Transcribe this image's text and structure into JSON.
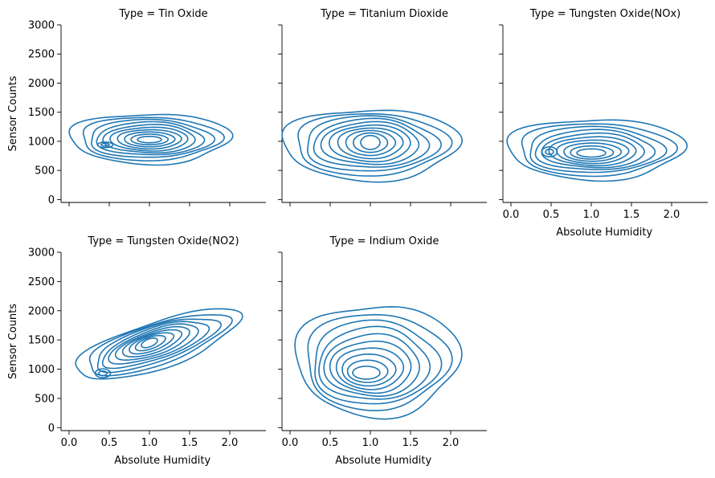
{
  "chart_data": {
    "type": "kde-contour-facet-grid",
    "xlabel": "Absolute Humidity",
    "ylabel": "Sensor Counts",
    "xlim": [
      -0.1,
      2.45
    ],
    "ylim": [
      -50,
      3000
    ],
    "xticks": [
      0.0,
      0.5,
      1.0,
      1.5,
      2.0
    ],
    "xtick_labels": [
      "0.0",
      "0.5",
      "1.0",
      "1.5",
      "2.0"
    ],
    "yticks": [
      0,
      500,
      1000,
      1500,
      2000,
      2500,
      3000
    ],
    "ytick_labels": [
      "0",
      "500",
      "1000",
      "1500",
      "2000",
      "2500",
      "3000"
    ],
    "line_color": "#1f77b4",
    "grid": false,
    "levels": 10,
    "panels": [
      {
        "title": "Type = Tin Oxide",
        "show_xticklabels": false,
        "show_xlabel": false,
        "show_yticklabels": true,
        "show_ylabel": true,
        "outer": {
          "cx": 1.0,
          "cy": 1050,
          "rx": 1.0,
          "ry": 430
        },
        "inner": {
          "cx": 1.0,
          "cy": 1030,
          "rx": 0.15,
          "ry": 55
        },
        "peaks": [
          {
            "cx": 0.45,
            "cy": 940,
            "rx": 0.05,
            "ry": 25
          }
        ]
      },
      {
        "title": "Type = Titanium Dioxide",
        "show_xticklabels": false,
        "show_xlabel": false,
        "show_yticklabels": false,
        "show_ylabel": false,
        "outer": {
          "cx": 1.0,
          "cy": 950,
          "rx": 1.1,
          "ry": 610
        },
        "inner": {
          "cx": 1.0,
          "cy": 980,
          "rx": 0.12,
          "ry": 120
        },
        "peaks": []
      },
      {
        "title": "Type = Tungsten Oxide(NOx)",
        "show_xticklabels": true,
        "show_xlabel": true,
        "show_yticklabels": false,
        "show_ylabel": false,
        "outer": {
          "cx": 1.05,
          "cy": 870,
          "rx": 1.1,
          "ry": 520
        },
        "inner": {
          "cx": 1.0,
          "cy": 800,
          "rx": 0.18,
          "ry": 70
        },
        "peaks": [
          {
            "cx": 0.48,
            "cy": 820,
            "rx": 0.05,
            "ry": 45
          }
        ]
      },
      {
        "title": "Type = Tungsten Oxide(NO2)",
        "show_xticklabels": true,
        "show_xlabel": true,
        "show_yticklabels": true,
        "show_ylabel": true,
        "outer": {
          "cx": 1.1,
          "cy": 1420,
          "rx": 1.02,
          "ry": 420,
          "tilt": 0.42
        },
        "inner": {
          "cx": 1.0,
          "cy": 1450,
          "rx": 0.1,
          "ry": 70
        },
        "peaks": [
          {
            "cx": 0.42,
            "cy": 930,
            "rx": 0.05,
            "ry": 40
          }
        ]
      },
      {
        "title": "Type = Indium Oxide",
        "show_xticklabels": true,
        "show_xlabel": true,
        "show_yticklabels": false,
        "show_ylabel": false,
        "outer": {
          "cx": 1.08,
          "cy": 1160,
          "rx": 1.02,
          "ry": 950
        },
        "inner": {
          "cx": 0.95,
          "cy": 940,
          "rx": 0.17,
          "ry": 110
        },
        "peaks": []
      }
    ]
  }
}
